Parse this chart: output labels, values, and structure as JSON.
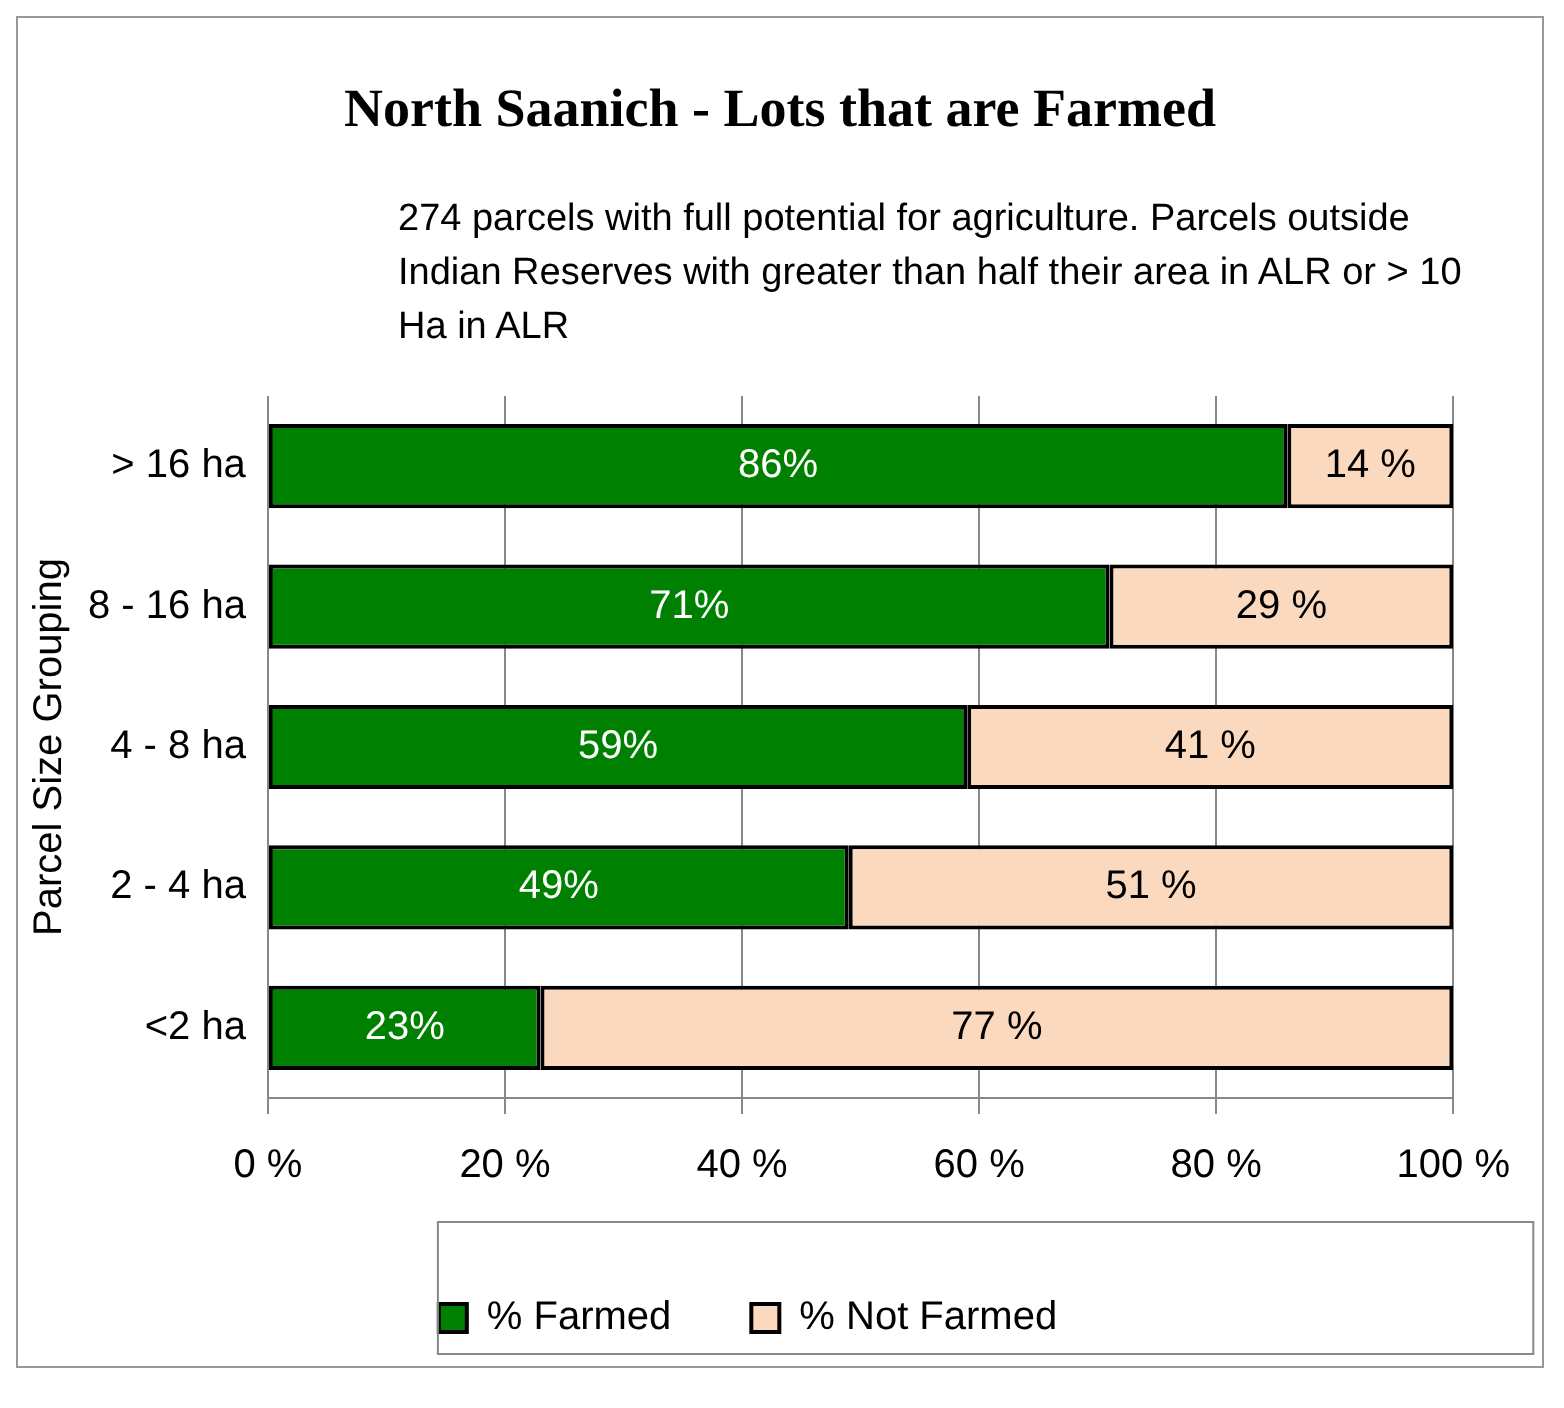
{
  "chart_data": {
    "type": "bar",
    "orientation": "horizontal",
    "stacked": true,
    "title": "North Saanich - Lots that are Farmed",
    "subtitle": "274 parcels with full potential for agriculture.  Parcels outside Indian Reserves with greater than half their area in ALR  or > 10 Ha in ALR",
    "ylabel": "Parcel Size Grouping",
    "categories": [
      "> 16 ha",
      "8 - 16 ha",
      "4 - 8 ha",
      "2 - 4 ha",
      "<2 ha"
    ],
    "series": [
      {
        "name": "% Farmed",
        "color": "#008000",
        "values": [
          86,
          71,
          59,
          49,
          23
        ],
        "value_labels": [
          "86%",
          "71%",
          "59%",
          "49%",
          "23%"
        ]
      },
      {
        "name": "% Not Farmed",
        "color": "#fbd9bf",
        "values": [
          14,
          29,
          41,
          51,
          77
        ],
        "value_labels": [
          "14 %",
          "29 %",
          "41 %",
          "51 %",
          "77 %"
        ]
      }
    ],
    "xlim": [
      0,
      100
    ],
    "xticks": [
      {
        "value": 0,
        "label": "0 %"
      },
      {
        "value": 20,
        "label": "20 %"
      },
      {
        "value": 40,
        "label": "40 %"
      },
      {
        "value": 60,
        "label": "60 %"
      },
      {
        "value": 80,
        "label": "80 %"
      },
      {
        "value": 100,
        "label": "100 %"
      }
    ],
    "grid": "x",
    "legend": "bottom"
  }
}
